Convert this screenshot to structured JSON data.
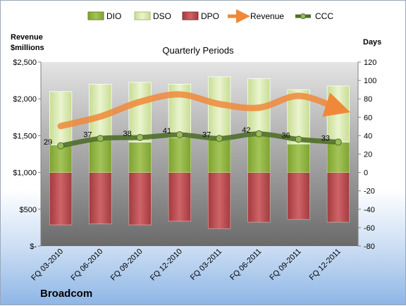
{
  "company": "Broadcom",
  "chart_data": {
    "type": "bar",
    "title": "Quarterly Periods",
    "left_axis_label": "Revenue\n$millions",
    "right_axis_label": "Days",
    "categories": [
      "FQ 03-2010",
      "FQ 06-2010",
      "FQ 09-2010",
      "FQ 12-2010",
      "FQ 03-2011",
      "FQ 06-2011",
      "FQ 09-2011",
      "FQ 12-2011"
    ],
    "left_ticks": [
      "$-",
      "$500",
      "$1,000",
      "$1,500",
      "$2,000",
      "$2,500"
    ],
    "right_ticks": [
      "-80",
      "-60",
      "-40",
      "-20",
      "0",
      "20",
      "40",
      "60",
      "80",
      "100",
      "120"
    ],
    "ylim_left": [
      0,
      2500
    ],
    "ylim_right": [
      -80,
      120
    ],
    "legend_position": "top",
    "grid": false,
    "colors": {
      "dio": "#8fb23c",
      "dso": "#d6e8a8",
      "dpo": "#b84a4e",
      "revenue": "#f0883a",
      "ccc": "#4f6e2a"
    },
    "series": [
      {
        "name": "DIO",
        "kind": "stacked-bar",
        "axis": "right",
        "values": [
          30,
          36,
          33,
          38,
          36,
          40,
          31,
          33
        ]
      },
      {
        "name": "DSO",
        "kind": "stacked-bar",
        "axis": "right",
        "values": [
          58,
          60,
          65,
          58,
          68,
          62,
          59,
          61
        ]
      },
      {
        "name": "DPO",
        "kind": "stacked-bar",
        "axis": "right",
        "values": [
          -57,
          -56,
          -57,
          -53,
          -61,
          -54,
          -51,
          -54
        ]
      },
      {
        "name": "Revenue",
        "kind": "line",
        "axis": "left",
        "values": [
          1630,
          1760,
          1960,
          2060,
          1930,
          1880,
          2040,
          1870
        ]
      },
      {
        "name": "CCC",
        "kind": "line",
        "axis": "right",
        "values": [
          29,
          37,
          38,
          41,
          37,
          42,
          36,
          33
        ],
        "labels": [
          "29",
          "37",
          "38",
          "41",
          "37",
          "42",
          "36",
          "33"
        ]
      }
    ]
  }
}
